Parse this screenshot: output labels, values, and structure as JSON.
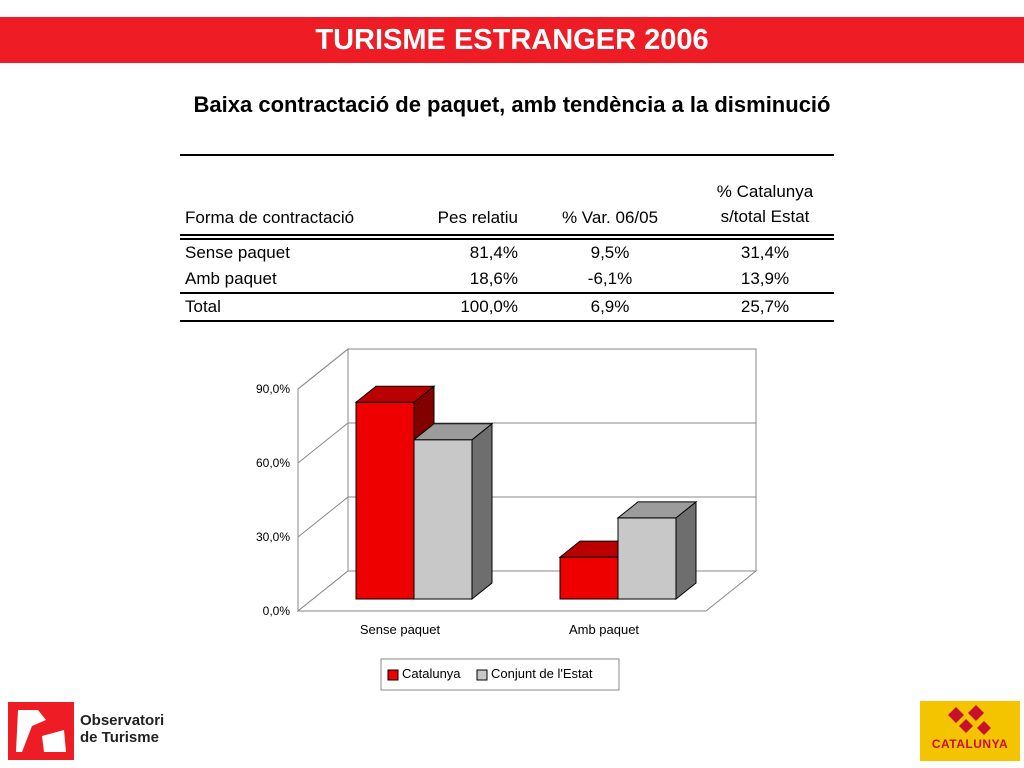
{
  "header": {
    "title": "TURISME ESTRANGER 2006",
    "band_color": "#ee1c25"
  },
  "subtitle": "Baixa contractació de paquet, amb tendència a la disminució",
  "table": {
    "headers": [
      "Forma de contractació",
      "Pes relatiu",
      "% Var. 06/05",
      "% Catalunya",
      "s/total Estat"
    ],
    "rows": [
      [
        "Sense paquet",
        "81,4%",
        "9,5%",
        "31,4%"
      ],
      [
        "Amb paquet",
        "18,6%",
        "-6,1%",
        "13,9%"
      ]
    ],
    "total": [
      "Total",
      "100,0%",
      "6,9%",
      "25,7%"
    ]
  },
  "chart_data": {
    "type": "bar",
    "title": "",
    "xlabel": "",
    "ylabel": "",
    "categories": [
      "Sense paquet",
      "Amb paquet"
    ],
    "series": [
      {
        "name": "Catalunya",
        "values": [
          81.4,
          18.6
        ],
        "color": "#ee0000"
      },
      {
        "name": "Conjunt de l'Estat",
        "values": [
          66.2,
          34.5
        ],
        "color": "#c8c8c8"
      }
    ],
    "ylim": [
      0,
      90
    ],
    "yticks": [
      "0,0%",
      "30,0%",
      "60,0%",
      "90,0%"
    ],
    "grid": true,
    "legend": "bottom"
  },
  "logos": {
    "observatori_line1": "Observatori",
    "observatori_line2": "de Turisme",
    "catalunya": "CATALUNYA"
  }
}
